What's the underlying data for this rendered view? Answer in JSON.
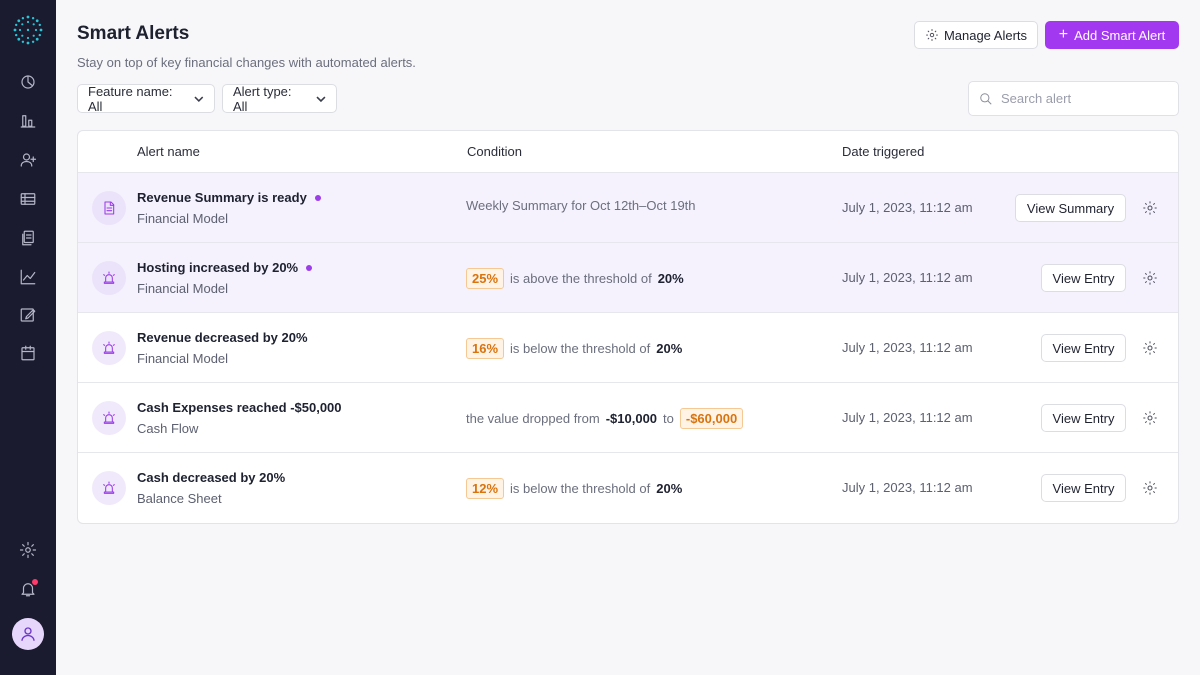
{
  "header": {
    "title": "Smart Alerts",
    "subtitle": "Stay on top of key financial changes with automated alerts.",
    "manage_label": "Manage Alerts",
    "add_label": "Add Smart Alert"
  },
  "filters": {
    "feature": "Feature name: All",
    "type": "Alert type: All"
  },
  "search": {
    "placeholder": "Search alert"
  },
  "table": {
    "columns": {
      "name": "Alert name",
      "condition": "Condition",
      "date": "Date triggered"
    },
    "rows": [
      {
        "title": "Revenue Summary is ready",
        "subtitle": "Financial Model",
        "condition_text": "Weekly Summary for Oct 12th–Oct 19th",
        "date": "July 1, 2023, 11:12 am",
        "action": "View Summary"
      },
      {
        "title": "Hosting increased by 20%",
        "subtitle": "Financial Model",
        "badge": "25%",
        "condition_pre": "is above the threshold of",
        "threshold": "20%",
        "date": "July 1, 2023, 11:12 am",
        "action": "View Entry"
      },
      {
        "title": "Revenue decreased by 20%",
        "subtitle": "Financial Model",
        "badge": "16%",
        "condition_pre": "is below the threshold of",
        "threshold": "20%",
        "date": "July 1, 2023, 11:12 am",
        "action": "View Entry"
      },
      {
        "title": "Cash Expenses reached -$50,000",
        "subtitle": "Cash Flow",
        "condition_pre": "the value dropped from",
        "from_value": "-$10,000",
        "to_word": "to",
        "badge": "-$60,000",
        "date": "July 1, 2023, 11:12 am",
        "action": "View Entry"
      },
      {
        "title": "Cash decreased by 20%",
        "subtitle": "Balance Sheet",
        "badge": "12%",
        "condition_pre": "is below the threshold of",
        "threshold": "20%",
        "date": "July 1, 2023, 11:12 am",
        "action": "View Entry"
      }
    ]
  },
  "sidebar": {
    "items": [
      "dashboard-icon",
      "bar-chart-icon",
      "add-user-icon",
      "list-card-icon",
      "documents-icon",
      "line-chart-icon",
      "edit-icon",
      "calendar-icon"
    ],
    "bottom": [
      "gear-icon",
      "bell-icon",
      "user-icon"
    ]
  },
  "colors": {
    "accent": "#a238f0",
    "sidebar": "#1a1b2e",
    "badge": "#d9730d"
  }
}
